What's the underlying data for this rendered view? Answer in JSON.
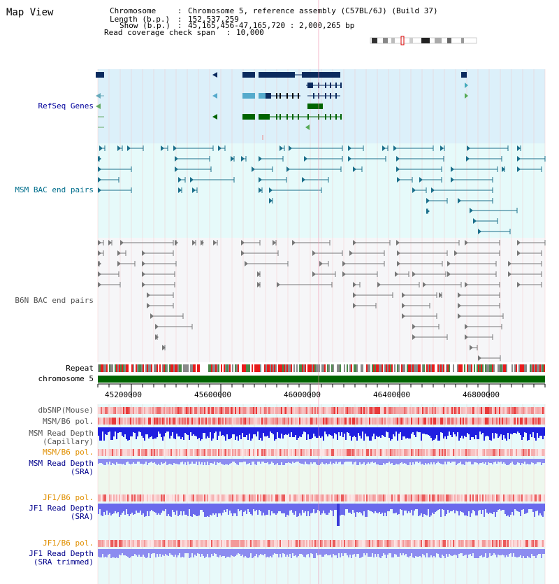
{
  "page": {
    "title": "Map View"
  },
  "header": {
    "chromosome_label": "Chromosome",
    "chromosome_value": "Chromosome 5, reference assembly (C57BL/6J) (Build 37)",
    "length_label": "Length (b.p.)",
    "length_value": "152,537,259",
    "show_label": "Show (b.p.)",
    "show_value": "45,165,456-47,165,720 : 2,000,265 bp",
    "coverage_label": "Read coverage check span",
    "coverage_value": "10,000"
  },
  "tracks": {
    "refseq": "RefSeq Genes",
    "msm_bac": "MSM BAC end pairs",
    "b6n_bac": "B6N BAC end pairs",
    "repeat": "Repeat",
    "chromosome": "chromosome 5",
    "dbsnp": "dbSNP(Mouse)",
    "msm_b6_pol_1": "MSM/B6 pol.",
    "msm_depth_cap_1": "MSM Read Depth",
    "msm_depth_cap_2": "(Capillary)",
    "msm_b6_pol_2": "MSM/B6 pol.",
    "msm_depth_sra_1": "MSM Read Depth",
    "msm_depth_sra_2": "(SRA)",
    "jf1_b6_pol_1": "JF1/B6 pol.",
    "jf1_depth_sra_1": "JF1 Read Depth",
    "jf1_depth_sra_2": "(SRA)",
    "jf1_b6_pol_2": "JF1/B6 pol.",
    "jf1_depth_trim_1": "JF1 Read Depth",
    "jf1_depth_trim_2": "(SRA trimmed)"
  },
  "axis": {
    "ticks": [
      "45200000",
      "45600000",
      "46000000",
      "46400000",
      "46800000"
    ],
    "start": 45165456,
    "end": 47165720
  },
  "colors": {
    "refseq_bg": "#dcf0fa",
    "msm_bg": "#e6fafa",
    "b6n_bg": "#f8f8fa",
    "chromosome_bar": "#006400",
    "gene_navy": "#0a2a5e",
    "gene_green": "#006400",
    "msm_teal": "#1a6e8a",
    "b6n_grey": "#777777",
    "depth_blue": "#1f1fe0",
    "depth_lightblue": "#7a7af0",
    "pol_red": "#e8302c"
  }
}
